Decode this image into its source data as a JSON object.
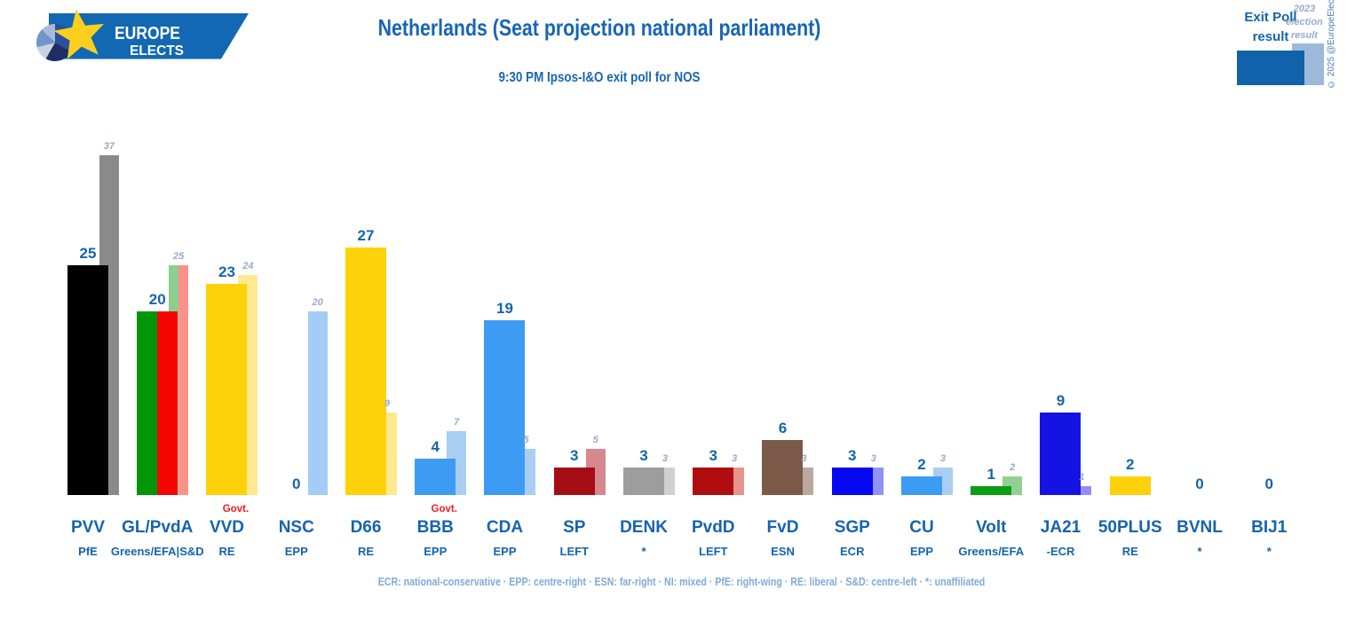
{
  "logo": {
    "line1": "EUROPE",
    "line2": "ELECTS"
  },
  "header": {
    "title": "Netherlands (Seat projection national parliament)",
    "subtitle": "9:30 PM Ipsos-I&O exit poll for NOS"
  },
  "legend": {
    "exit_line1": "Exit Poll",
    "exit_line2": "result",
    "prev_line1": "2023",
    "prev_line2": "election",
    "prev_line3": "result",
    "copyright": "© 2025 @EuropeElects",
    "exit_swatch_color": "#1261ab",
    "prev_swatch_color": "#9cb9da"
  },
  "labels": {
    "govt": "Govt."
  },
  "footer": {
    "glossary": "ECR: national-conservative · EPP: centre-right · ESN: far-right · NI: mixed · PfE: right-wing · RE: liberal · S&D: centre-left · *: unaffiliated"
  },
  "chart_data": {
    "type": "bar",
    "title": "Netherlands (Seat projection national parliament)",
    "subtitle": "9:30 PM Ipsos-I&O exit poll for NOS",
    "unit": "seats",
    "grid": false,
    "axes_hidden": true,
    "legend_position": "top-right",
    "series_names": [
      "Exit Poll result",
      "2023 election result"
    ],
    "parties": [
      {
        "name": "PVV",
        "group": "PfE",
        "exit": 25,
        "prev": 37,
        "govt": false,
        "exit_colors": [
          "#000000"
        ],
        "prev_colors": [
          "#8a8a8a"
        ]
      },
      {
        "name": "GL/PvdA",
        "group": "Greens/EFA|S&D",
        "exit": 20,
        "prev": 25,
        "govt": false,
        "exit_colors": [
          "#009608",
          "#f50500"
        ],
        "prev_colors": [
          "#8bce8e",
          "#fa918b"
        ]
      },
      {
        "name": "VVD",
        "group": "RE",
        "exit": 23,
        "prev": 24,
        "govt": true,
        "exit_colors": [
          "#fdd20a"
        ],
        "prev_colors": [
          "#fee990"
        ]
      },
      {
        "name": "NSC",
        "group": "EPP",
        "exit": 0,
        "prev": 20,
        "govt": false,
        "exit_colors": [
          "#a3cdf4"
        ],
        "prev_colors": [
          "#a3cdf4"
        ]
      },
      {
        "name": "D66",
        "group": "RE",
        "exit": 27,
        "prev": 9,
        "govt": false,
        "exit_colors": [
          "#fdd20a"
        ],
        "prev_colors": [
          "#fee990"
        ]
      },
      {
        "name": "BBB",
        "group": "EPP",
        "exit": 4,
        "prev": 7,
        "govt": true,
        "exit_colors": [
          "#3e9bf3"
        ],
        "prev_colors": [
          "#a9cef3"
        ]
      },
      {
        "name": "CDA",
        "group": "EPP",
        "exit": 19,
        "prev": 5,
        "govt": false,
        "exit_colors": [
          "#3e9bf3"
        ],
        "prev_colors": [
          "#a9cef3"
        ]
      },
      {
        "name": "SP",
        "group": "LEFT",
        "exit": 3,
        "prev": 5,
        "govt": false,
        "exit_colors": [
          "#a50d14"
        ],
        "prev_colors": [
          "#d5888f"
        ]
      },
      {
        "name": "DENK",
        "group": "*",
        "exit": 3,
        "prev": 3,
        "govt": false,
        "exit_colors": [
          "#9d9d9d"
        ],
        "prev_colors": [
          "#d0d0d0"
        ]
      },
      {
        "name": "PvdD",
        "group": "LEFT",
        "exit": 3,
        "prev": 3,
        "govt": false,
        "exit_colors": [
          "#b00d10"
        ],
        "prev_colors": [
          "#e8928c"
        ]
      },
      {
        "name": "FvD",
        "group": "ESN",
        "exit": 6,
        "prev": 3,
        "govt": false,
        "exit_colors": [
          "#7b5a4a"
        ],
        "prev_colors": [
          "#bba89d"
        ]
      },
      {
        "name": "SGP",
        "group": "ECR",
        "exit": 3,
        "prev": 3,
        "govt": false,
        "exit_colors": [
          "#0708f2"
        ],
        "prev_colors": [
          "#9092f6"
        ]
      },
      {
        "name": "CU",
        "group": "EPP",
        "exit": 2,
        "prev": 3,
        "govt": false,
        "exit_colors": [
          "#3e9bf3"
        ],
        "prev_colors": [
          "#a9cef3"
        ]
      },
      {
        "name": "Volt",
        "group": "Greens/EFA",
        "exit": 1,
        "prev": 2,
        "govt": false,
        "exit_colors": [
          "#0c9e12"
        ],
        "prev_colors": [
          "#92d092"
        ]
      },
      {
        "name": "JA21",
        "group": "-ECR",
        "exit": 9,
        "prev": 1,
        "govt": false,
        "exit_colors": [
          "#1413e4"
        ],
        "prev_colors": [
          "#968ef4"
        ]
      },
      {
        "name": "50PLUS",
        "group": "RE",
        "exit": 2,
        "prev": null,
        "govt": false,
        "exit_colors": [
          "#fdd20a"
        ],
        "prev_colors": []
      },
      {
        "name": "BVNL",
        "group": "*",
        "exit": 0,
        "prev": null,
        "govt": false,
        "exit_colors": [],
        "prev_colors": []
      },
      {
        "name": "BIJ1",
        "group": "*",
        "exit": 0,
        "prev": null,
        "govt": false,
        "exit_colors": [],
        "prev_colors": []
      }
    ]
  }
}
